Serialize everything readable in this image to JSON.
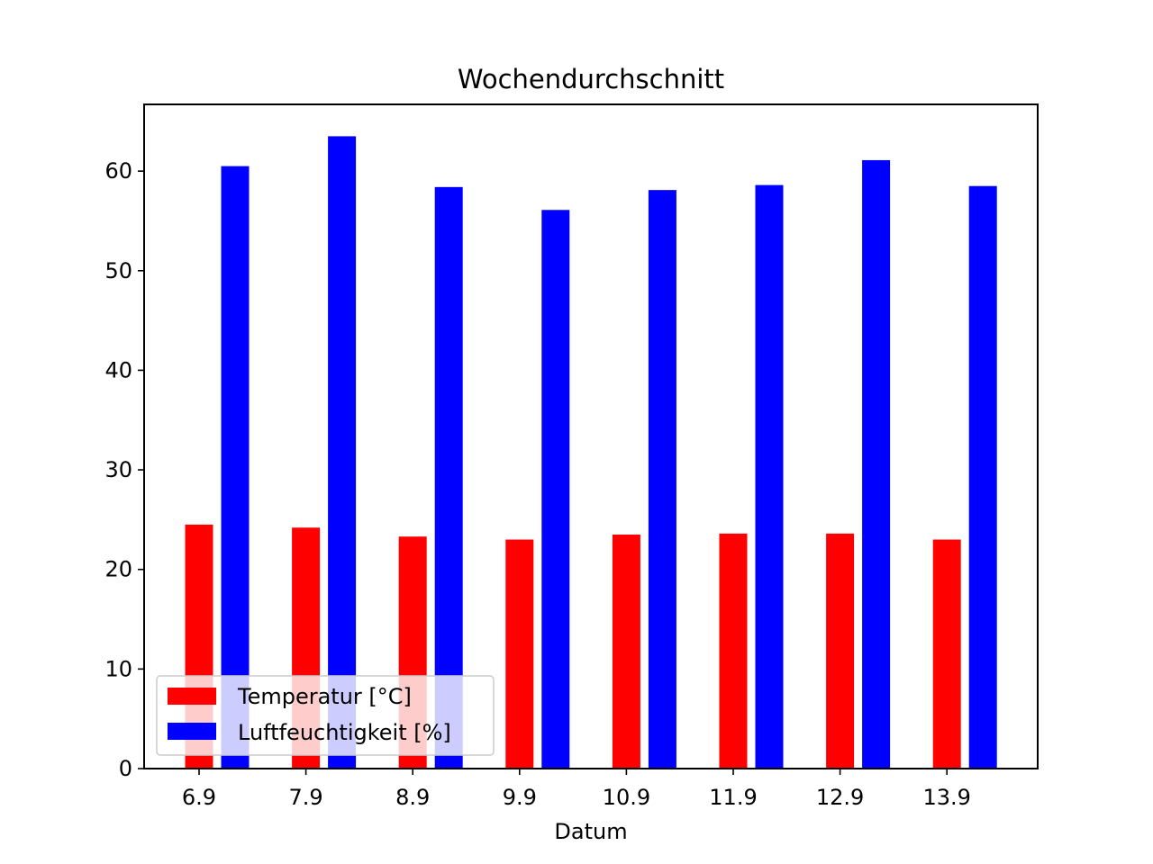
{
  "chart_data": {
    "type": "bar",
    "title": "Wochendurchschnitt",
    "xlabel": "Datum",
    "ylabel": "",
    "categories": [
      "6.9",
      "7.9",
      "8.9",
      "9.9",
      "10.9",
      "11.9",
      "12.9",
      "13.9"
    ],
    "series": [
      {
        "name": "Temperatur [°C]",
        "color": "#ff0000",
        "values": [
          24.5,
          24.2,
          23.3,
          23.0,
          23.5,
          23.6,
          23.6,
          23.0
        ]
      },
      {
        "name": "Luftfeuchtigkeit [%]",
        "color": "#0000ff",
        "values": [
          60.5,
          63.5,
          58.4,
          56.1,
          58.1,
          58.6,
          61.1,
          58.5
        ]
      }
    ],
    "ylim": [
      0,
      66.7
    ],
    "yticks": [
      0,
      10,
      20,
      30,
      40,
      50,
      60
    ],
    "grid": false,
    "legend_position": "lower-left"
  }
}
